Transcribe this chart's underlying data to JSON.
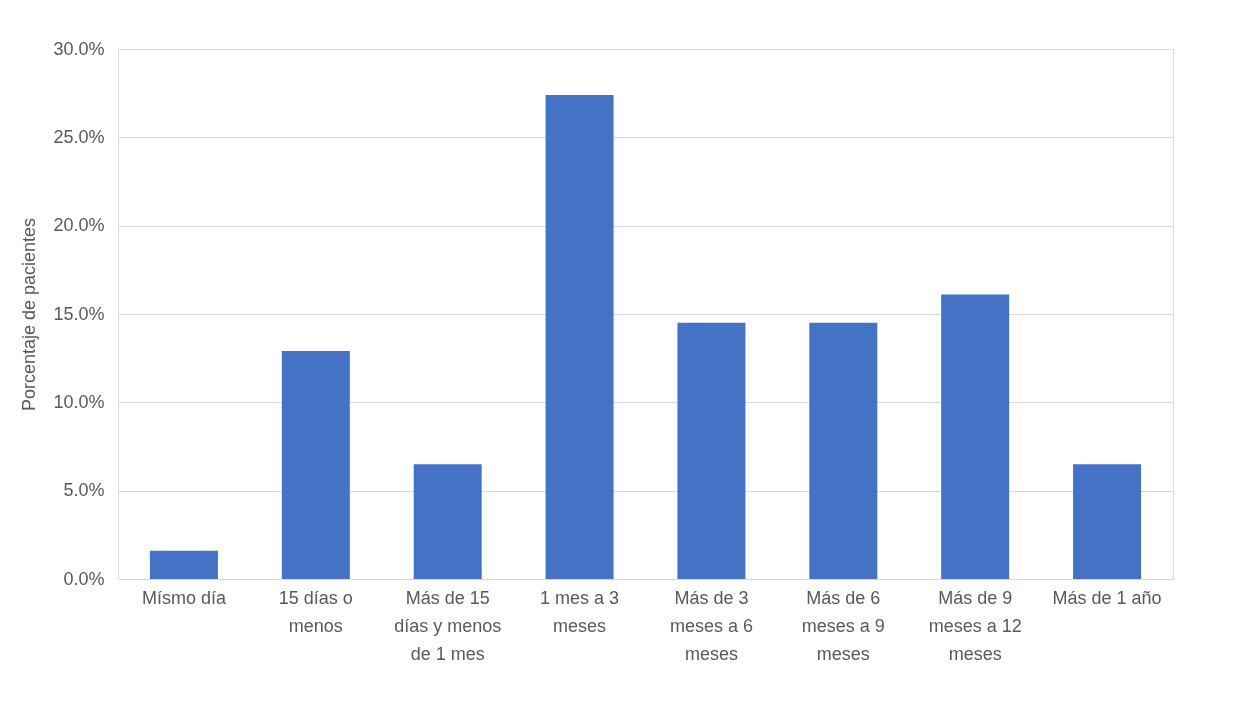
{
  "chart_data": {
    "type": "bar",
    "ylabel": "Porcentaje de pacientes",
    "categories": [
      "Mísmo día",
      "15 días o menos",
      "Más de 15 días y menos de 1 mes",
      "1 mes a 3 meses",
      "Más de 3 meses a 6 meses",
      "Más de 6 meses a 9 meses",
      "Más de 9 meses a 12 meses",
      "Más de 1 año"
    ],
    "values": [
      1.6,
      12.9,
      6.5,
      27.4,
      14.5,
      14.5,
      16.1,
      6.5
    ],
    "color": "#4472c4",
    "ylim": [
      0,
      30
    ],
    "yticks": [
      {
        "value": 0,
        "label": "0.0%"
      },
      {
        "value": 5,
        "label": "5.0%"
      },
      {
        "value": 10,
        "label": "10.0%"
      },
      {
        "value": 15,
        "label": "15.0%"
      },
      {
        "value": 20,
        "label": "20.0%"
      },
      {
        "value": 25,
        "label": "25.0%"
      },
      {
        "value": 30,
        "label": "30.0%"
      }
    ],
    "grid": "y"
  }
}
